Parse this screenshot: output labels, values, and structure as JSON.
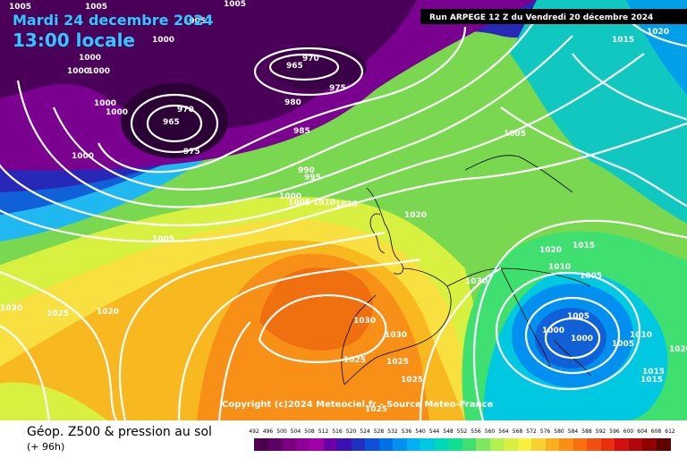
{
  "header": {
    "date_line": "Mardi 24 decembre 2024",
    "time_line": "13:00 locale",
    "run_info": "Run ARPEGE 12 Z du Vendredi 20 décembre 2024",
    "copyright": "Copyright (c)2024 Meteociel.fr - Source Meteo-France"
  },
  "footer": {
    "title": "Géop. Z500 & pression au sol",
    "subtitle": "(+ 96h)"
  },
  "scale": {
    "ticks": [
      "492",
      "496",
      "500",
      "504",
      "508",
      "512",
      "516",
      "520",
      "524",
      "528",
      "532",
      "536",
      "540",
      "544",
      "548",
      "552",
      "556",
      "560",
      "564",
      "568",
      "572",
      "576",
      "580",
      "584",
      "588",
      "592",
      "596",
      "600",
      "604",
      "608",
      "612"
    ],
    "colors": [
      "#4b0050",
      "#5c0063",
      "#7a0080",
      "#8f0097",
      "#a000a8",
      "#6a00a8",
      "#3a10b0",
      "#2030c0",
      "#1050d8",
      "#0070e8",
      "#0090f0",
      "#00b0f0",
      "#00c8e0",
      "#00d8b8",
      "#10e090",
      "#40e070",
      "#80e860",
      "#b0f050",
      "#d8f040",
      "#f8f040",
      "#f8d030",
      "#f8b020",
      "#f89018",
      "#f87010",
      "#f05010",
      "#e83010",
      "#d01010",
      "#b00808",
      "#900000",
      "#600000"
    ]
  },
  "isobar_labels": [
    {
      "text": "1005"
    },
    {
      "text": "1005"
    },
    {
      "text": "1005"
    },
    {
      "text": "1005"
    },
    {
      "text": "1000"
    },
    {
      "text": "1000"
    },
    {
      "text": "1000"
    },
    {
      "text": "1000"
    },
    {
      "text": "1000"
    },
    {
      "text": "1000"
    },
    {
      "text": "1000"
    },
    {
      "text": "965"
    },
    {
      "text": "970"
    },
    {
      "text": "975"
    },
    {
      "text": "970"
    },
    {
      "text": "965"
    },
    {
      "text": "975"
    },
    {
      "text": "980"
    },
    {
      "text": "985"
    },
    {
      "text": "990"
    },
    {
      "text": "995"
    },
    {
      "text": "1000"
    },
    {
      "text": "1005"
    },
    {
      "text": "1010"
    },
    {
      "text": "1015"
    },
    {
      "text": "1020"
    },
    {
      "text": "1005"
    },
    {
      "text": "1015"
    },
    {
      "text": "1020"
    },
    {
      "text": "1005"
    },
    {
      "text": "1030"
    },
    {
      "text": "1025"
    },
    {
      "text": "1020"
    },
    {
      "text": "1030"
    },
    {
      "text": "1030"
    },
    {
      "text": "1020"
    },
    {
      "text": "1015"
    },
    {
      "text": "1010"
    },
    {
      "text": "1005"
    },
    {
      "text": "1005"
    },
    {
      "text": "1000"
    },
    {
      "text": "1000"
    },
    {
      "text": "1005"
    },
    {
      "text": "1010"
    },
    {
      "text": "1030"
    },
    {
      "text": "1025"
    },
    {
      "text": "1025"
    },
    {
      "text": "1025"
    },
    {
      "text": "1025"
    },
    {
      "text": "1015"
    },
    {
      "text": "1015"
    },
    {
      "text": "1020"
    }
  ]
}
